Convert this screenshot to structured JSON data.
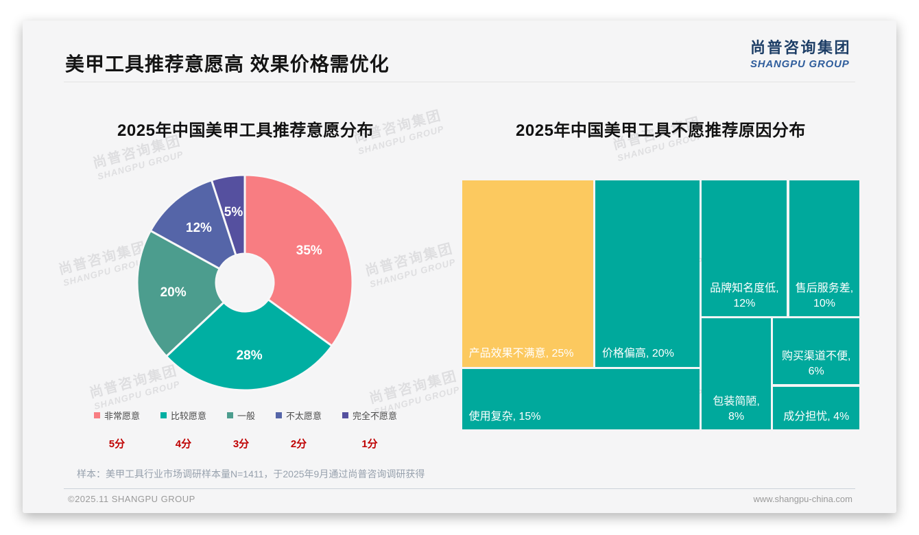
{
  "page": {
    "main_title": "美甲工具推荐意愿高 效果价格需优化",
    "logo": {
      "cn": "尚普咨询集团",
      "en": "SHANGPU GROUP"
    },
    "watermark": {
      "cn": "尚普咨询集团",
      "en": "SHANGPU GROUP"
    },
    "sample_note": "样本：美甲工具行业市场调研样本量N=1411，于2025年9月通过尚普咨询调研获得",
    "footer_left": "©2025.11 SHANGPU GROUP",
    "footer_right": "www.shangpu-china.com"
  },
  "chart_data": [
    {
      "type": "pie",
      "title": "2025年中国美甲工具推荐意愿分布",
      "donut": true,
      "start_angle": "top",
      "direction": "clockwise",
      "inner_radius_ratio": 0.27,
      "legend_position": "bottom",
      "score_color": "#bf0000",
      "slices": [
        {
          "label": "非常愿意",
          "score": "5分",
          "value": 35,
          "color": "#f87d82"
        },
        {
          "label": "比较愿意",
          "score": "4分",
          "value": 28,
          "color": "#00afa2"
        },
        {
          "label": "一般",
          "score": "3分",
          "value": 20,
          "color": "#4c9d8e"
        },
        {
          "label": "不太愿意",
          "score": "2分",
          "value": 12,
          "color": "#5565a8"
        },
        {
          "label": "完全不愿意",
          "score": "1分",
          "value": 5,
          "color": "#55509f"
        }
      ]
    },
    {
      "type": "treemap",
      "title": "2025年中国美甲工具不愿推荐原因分布",
      "unit": "%",
      "items": [
        {
          "label": "产品效果不满意",
          "value": 25,
          "color": "#fcc95f"
        },
        {
          "label": "价格偏高",
          "value": 20,
          "color": "#00a99c"
        },
        {
          "label": "使用复杂",
          "value": 15,
          "color": "#00a99c"
        },
        {
          "label": "品牌知名度低",
          "value": 12,
          "color": "#00a99c"
        },
        {
          "label": "售后服务差",
          "value": 10,
          "color": "#00a99c"
        },
        {
          "label": "包装简陋",
          "value": 8,
          "color": "#00a99c"
        },
        {
          "label": "购买渠道不便",
          "value": 6,
          "color": "#00a99c"
        },
        {
          "label": "成分担忧",
          "value": 4,
          "color": "#00a99c"
        }
      ]
    }
  ]
}
